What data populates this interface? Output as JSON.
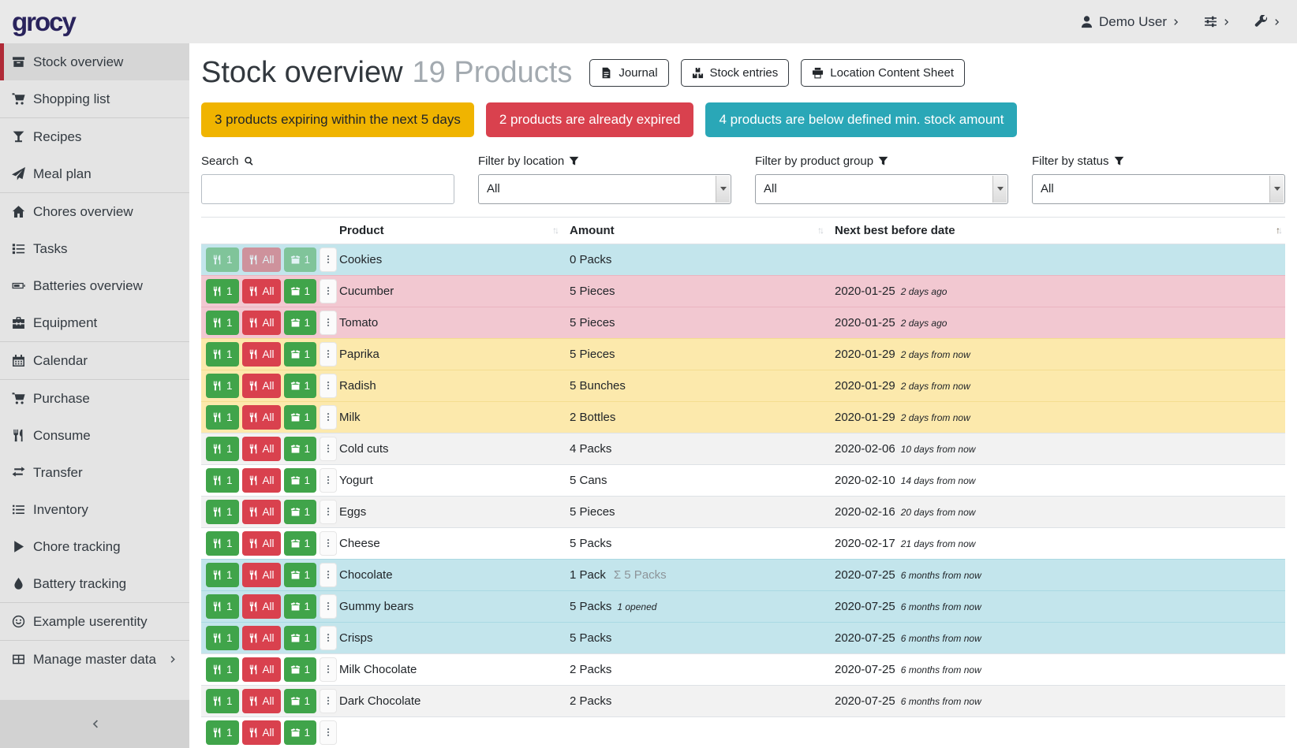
{
  "header": {
    "logo": "grocy",
    "user_label": "Demo User"
  },
  "sidebar": {
    "items": [
      {
        "label": "Stock overview",
        "icon": "box-icon",
        "active": true
      },
      {
        "label": "Shopping list",
        "icon": "cart-icon",
        "divider_after": true
      },
      {
        "label": "Recipes",
        "icon": "cocktail-icon"
      },
      {
        "label": "Meal plan",
        "icon": "paper-plane-icon",
        "divider_after": true
      },
      {
        "label": "Chores overview",
        "icon": "home-icon"
      },
      {
        "label": "Tasks",
        "icon": "tasks-icon"
      },
      {
        "label": "Batteries overview",
        "icon": "battery-icon"
      },
      {
        "label": "Equipment",
        "icon": "toolbox-icon",
        "divider_after": true
      },
      {
        "label": "Calendar",
        "icon": "calendar-icon",
        "divider_after": true
      },
      {
        "label": "Purchase",
        "icon": "cart-icon"
      },
      {
        "label": "Consume",
        "icon": "utensils-icon"
      },
      {
        "label": "Transfer",
        "icon": "exchange-icon"
      },
      {
        "label": "Inventory",
        "icon": "list-icon"
      },
      {
        "label": "Chore tracking",
        "icon": "play-icon"
      },
      {
        "label": "Battery tracking",
        "icon": "tint-icon",
        "divider_after": true
      },
      {
        "label": "Example userentity",
        "icon": "smile-icon",
        "divider_after": true
      },
      {
        "label": "Manage master data",
        "icon": "table-icon",
        "has_chevron": true
      }
    ]
  },
  "page": {
    "title": "Stock overview",
    "subtitle": "19 Products",
    "buttons": [
      {
        "label": "Journal",
        "icon": "file-icon"
      },
      {
        "label": "Stock entries",
        "icon": "boxes-icon"
      },
      {
        "label": "Location Content Sheet",
        "icon": "print-icon"
      }
    ],
    "banners": [
      {
        "text": "3 products expiring within the next 5 days",
        "color": "#f0b400",
        "text_color": "#212529"
      },
      {
        "text": "2 products are already expired",
        "color": "#d9414e",
        "text_color": "#ffffff"
      },
      {
        "text": "4 products are below defined min. stock amount",
        "color": "#2aa7b7",
        "text_color": "#ffffff"
      }
    ],
    "filters": {
      "search_label": "Search",
      "location_label": "Filter by location",
      "product_group_label": "Filter by product group",
      "status_label": "Filter by status",
      "all_value": "All"
    }
  },
  "table": {
    "columns": [
      "Product",
      "Amount",
      "Next best before date"
    ],
    "row_actions": {
      "consume_one": "1",
      "consume_all": "All",
      "open_one": "1"
    },
    "rows": [
      {
        "product": "Cookies",
        "amount": "0 Packs",
        "date": "",
        "date_rel": "",
        "status": "belowmin",
        "muted_actions": true
      },
      {
        "product": "Cucumber",
        "amount": "5 Pieces",
        "date": "2020-01-25",
        "date_rel": "2 days ago",
        "status": "expired"
      },
      {
        "product": "Tomato",
        "amount": "5 Pieces",
        "date": "2020-01-25",
        "date_rel": "2 days ago",
        "status": "expired"
      },
      {
        "product": "Paprika",
        "amount": "5 Pieces",
        "date": "2020-01-29",
        "date_rel": "2 days from now",
        "status": "expiring"
      },
      {
        "product": "Radish",
        "amount": "5 Bunches",
        "date": "2020-01-29",
        "date_rel": "2 days from now",
        "status": "expiring"
      },
      {
        "product": "Milk",
        "amount": "2 Bottles",
        "date": "2020-01-29",
        "date_rel": "2 days from now",
        "status": "expiring"
      },
      {
        "product": "Cold cuts",
        "amount": "4 Packs",
        "date": "2020-02-06",
        "date_rel": "10 days from now",
        "status": "stripe"
      },
      {
        "product": "Yogurt",
        "amount": "5 Cans",
        "date": "2020-02-10",
        "date_rel": "14 days from now",
        "status": "none"
      },
      {
        "product": "Eggs",
        "amount": "5 Pieces",
        "date": "2020-02-16",
        "date_rel": "20 days from now",
        "status": "stripe"
      },
      {
        "product": "Cheese",
        "amount": "5 Packs",
        "date": "2020-02-17",
        "date_rel": "21 days from now",
        "status": "none"
      },
      {
        "product": "Chocolate",
        "amount": "1 Pack",
        "amount_sum": "Σ 5 Packs",
        "date": "2020-07-25",
        "date_rel": "6 months from now",
        "status": "belowmin"
      },
      {
        "product": "Gummy bears",
        "amount": "5 Packs",
        "amount_note": "1 opened",
        "date": "2020-07-25",
        "date_rel": "6 months from now",
        "status": "belowmin"
      },
      {
        "product": "Crisps",
        "amount": "5 Packs",
        "date": "2020-07-25",
        "date_rel": "6 months from now",
        "status": "belowmin"
      },
      {
        "product": "Milk Chocolate",
        "amount": "2 Packs",
        "date": "2020-07-25",
        "date_rel": "6 months from now",
        "status": "none"
      },
      {
        "product": "Dark Chocolate",
        "amount": "2 Packs",
        "date": "2020-07-25",
        "date_rel": "6 months from now",
        "status": "stripe"
      },
      {
        "product": "",
        "amount": "",
        "date": "",
        "date_rel": "",
        "status": "none",
        "partial": true
      }
    ]
  }
}
